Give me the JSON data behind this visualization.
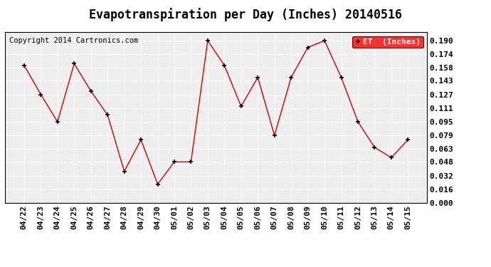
{
  "title": "Evapotranspiration per Day (Inches) 20140516",
  "copyright_text": "Copyright 2014 Cartronics.com",
  "legend_label": "ET  (Inches)",
  "x_labels": [
    "04/22",
    "04/23",
    "04/24",
    "04/25",
    "04/26",
    "04/27",
    "04/28",
    "04/29",
    "04/30",
    "05/01",
    "05/02",
    "05/03",
    "05/04",
    "05/05",
    "05/06",
    "05/07",
    "05/08",
    "05/09",
    "05/10",
    "05/11",
    "05/12",
    "05/13",
    "05/14",
    "05/15"
  ],
  "y_values": [
    0.161,
    0.127,
    0.095,
    0.163,
    0.131,
    0.103,
    0.037,
    0.074,
    0.022,
    0.048,
    0.048,
    0.19,
    0.161,
    0.113,
    0.147,
    0.079,
    0.147,
    0.182,
    0.19,
    0.147,
    0.095,
    0.065,
    0.053,
    0.074
  ],
  "line_color": "#cc0000",
  "marker_color": "#000000",
  "bg_color": "#ffffff",
  "plot_bg_color": "#eeeeee",
  "grid_color": "#ffffff",
  "ylim": [
    0.0,
    0.2
  ],
  "yticks": [
    0.0,
    0.016,
    0.032,
    0.048,
    0.063,
    0.079,
    0.095,
    0.111,
    0.127,
    0.143,
    0.158,
    0.174,
    0.19
  ],
  "ytick_labels": [
    "0.000",
    "0.016",
    "0.032",
    "0.048",
    "0.063",
    "0.079",
    "0.095",
    "0.111",
    "0.127",
    "0.143",
    "0.158",
    "0.174",
    "0.190"
  ],
  "title_fontsize": 12,
  "tick_fontsize": 8,
  "copyright_fontsize": 7.5
}
